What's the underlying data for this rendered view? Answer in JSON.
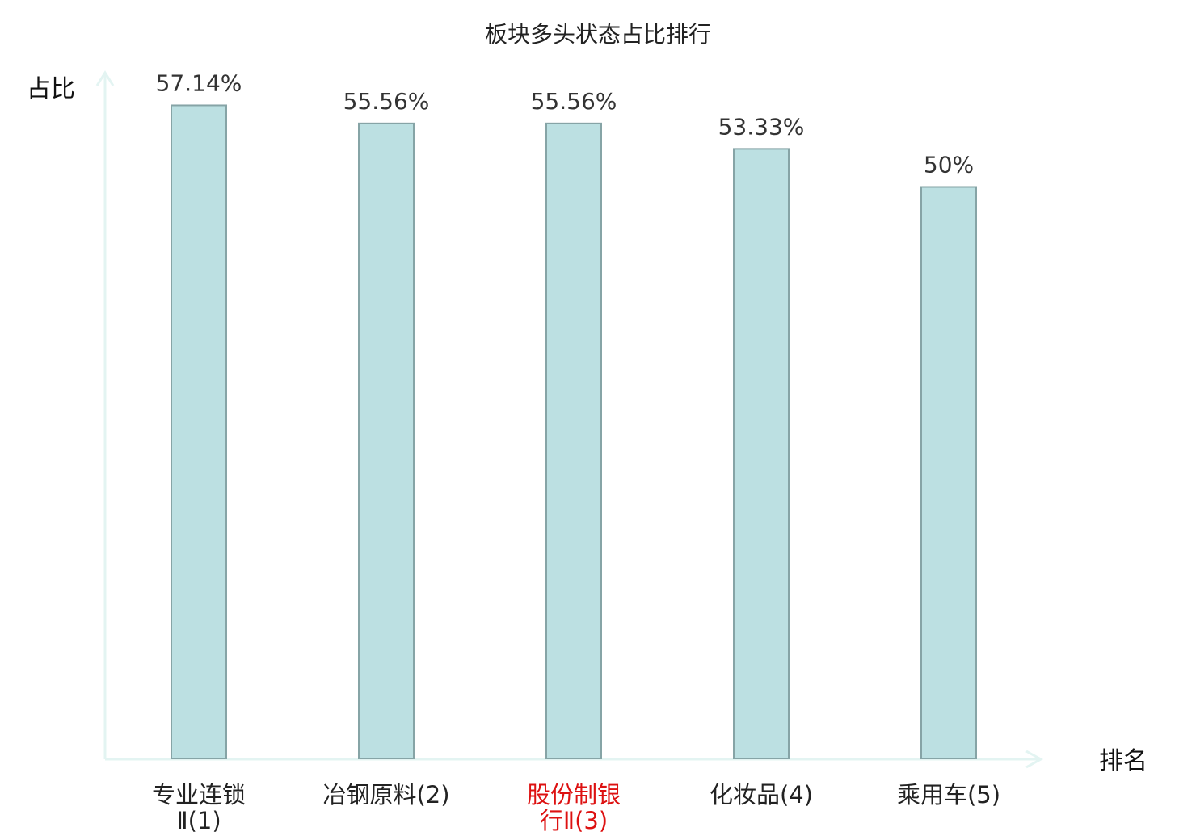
{
  "chart_data": {
    "type": "bar",
    "title": "板块多头状态占比排行",
    "ylabel": "占比",
    "xlabel": "排名",
    "ylim": [
      0,
      60
    ],
    "categories": [
      [
        "专业连锁",
        "Ⅱ(1)"
      ],
      [
        "冶钢原料(2)"
      ],
      [
        "股份制银",
        "行Ⅱ(3)"
      ],
      [
        "化妆品(4)"
      ],
      [
        "乘用车(5)"
      ]
    ],
    "values": [
      57.14,
      55.56,
      55.56,
      53.33,
      50
    ],
    "value_labels": [
      "57.14%",
      "55.56%",
      "55.56%",
      "53.33%",
      "50%"
    ],
    "highlight_index": 2,
    "colors": {
      "bar_fill": "#bce0e2",
      "bar_stroke": "#86a4a6",
      "axis": "#e3f4f2",
      "label_default": "#222222",
      "label_highlight": "#dd1111"
    }
  }
}
